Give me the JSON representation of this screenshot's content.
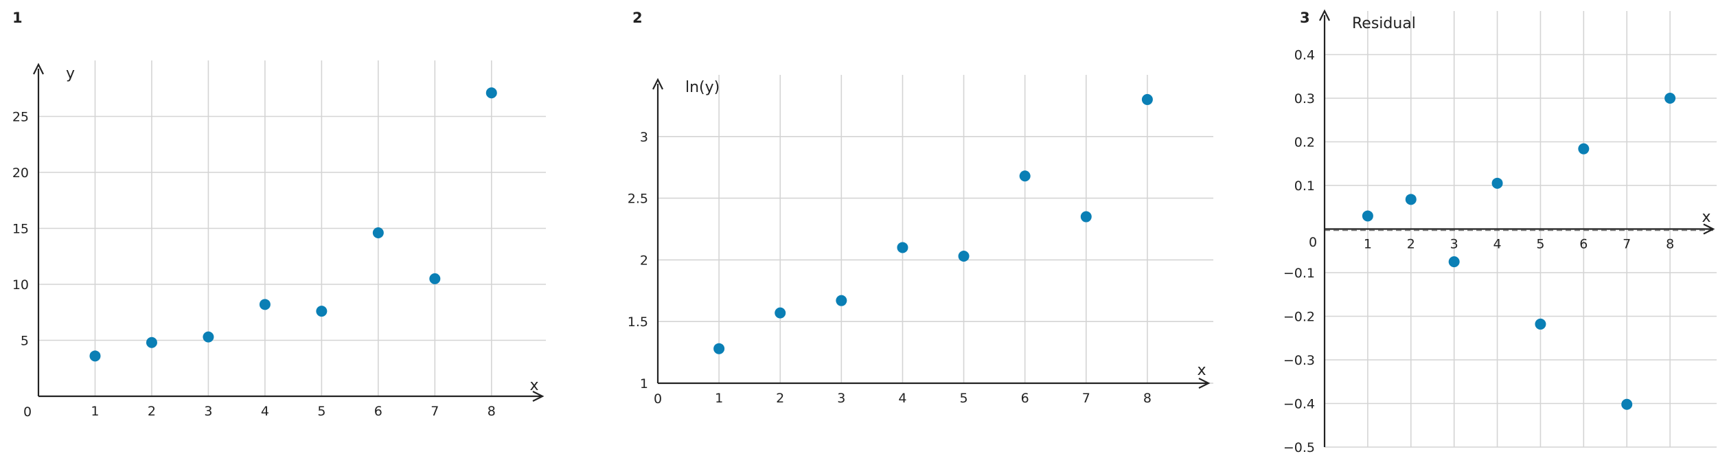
{
  "colors": {
    "point": "#0a7fb5",
    "grid": "#d4d4d4",
    "axis": "#222222"
  },
  "chart_data": [
    {
      "type": "scatter",
      "panel_label": "1",
      "xlabel": "x",
      "ylabel": "y",
      "origin_label": "0",
      "xlim": [
        0,
        8.9
      ],
      "ylim": [
        0,
        30
      ],
      "xticks": [
        1,
        2,
        3,
        4,
        5,
        6,
        7,
        8
      ],
      "yticks": [
        5,
        10,
        15,
        20,
        25
      ],
      "ytick_labels": [
        "5",
        "10",
        "15",
        "20",
        "25"
      ],
      "grid": true,
      "series": [
        {
          "x": [
            1,
            2,
            3,
            4,
            5,
            6,
            7,
            8
          ],
          "y": [
            3.6,
            4.8,
            5.3,
            8.2,
            7.6,
            14.6,
            10.5,
            27.1
          ]
        }
      ]
    },
    {
      "type": "scatter",
      "panel_label": "2",
      "xlabel": "x",
      "ylabel": "ln(y)",
      "origin_label": "0",
      "xlim": [
        0,
        9.0
      ],
      "ylim": [
        1,
        3.5
      ],
      "xticks": [
        1,
        2,
        3,
        4,
        5,
        6,
        7,
        8
      ],
      "yticks": [
        1,
        1.5,
        2,
        2.5,
        3
      ],
      "ytick_labels": [
        "1",
        "1.5",
        "2",
        "2.5",
        "3"
      ],
      "grid": true,
      "series": [
        {
          "x": [
            1,
            2,
            3,
            4,
            5,
            6,
            7,
            8
          ],
          "y": [
            1.28,
            1.57,
            1.67,
            2.1,
            2.03,
            2.68,
            2.35,
            3.3
          ]
        }
      ]
    },
    {
      "type": "scatter",
      "panel_label": "3",
      "xlabel": "x",
      "ylabel": "Residual",
      "origin_label": "0",
      "xlim": [
        0,
        9.0
      ],
      "ylim": [
        -0.5,
        0.5
      ],
      "xticks": [
        1,
        2,
        3,
        4,
        5,
        6,
        7,
        8
      ],
      "yticks": [
        -0.5,
        -0.4,
        -0.3,
        -0.2,
        -0.1,
        0.1,
        0.2,
        0.3,
        0.4
      ],
      "ytick_labels": [
        "−0.5",
        "−0.4",
        "−0.3",
        "−0.2",
        "−0.1",
        "0.1",
        "0.2",
        "0.3",
        "0.4"
      ],
      "grid": true,
      "zero_line": true,
      "series": [
        {
          "x": [
            1,
            2,
            3,
            4,
            5,
            6,
            7,
            8
          ],
          "y": [
            0.03,
            0.068,
            -0.075,
            0.105,
            -0.218,
            0.184,
            -0.402,
            0.3
          ]
        }
      ]
    }
  ]
}
